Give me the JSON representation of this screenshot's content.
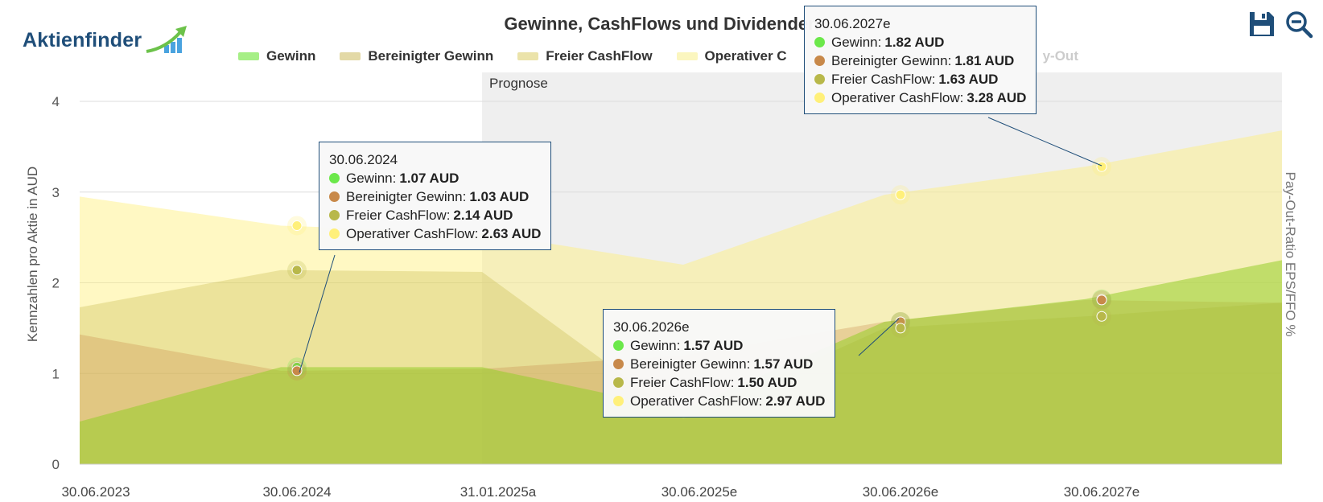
{
  "logo": {
    "text": "Aktienfinder"
  },
  "toolbar": {
    "save_icon": "save-icon",
    "zoom_icon": "zoom-out-icon"
  },
  "colors": {
    "gewinn": "#6be84a",
    "bereinigter_gewinn": "#c8894a",
    "freier_cashflow": "#b8b84a",
    "operativer_cashflow": "#fff07a",
    "axis_title": "#1f4e79"
  },
  "chart_data": {
    "type": "area",
    "title": "Gewinne, CashFlows und Dividenden",
    "ylabel": "Kennzahlen pro Aktie in AUD",
    "ylabel_right": "Pay-Out-Ratio EPS/FFO %",
    "ylim": [
      0,
      4
    ],
    "yticks": [
      "0",
      "1",
      "2",
      "3",
      "4"
    ],
    "categories": [
      "30.06.2023",
      "30.06.2024",
      "31.01.2025a",
      "30.06.2025e",
      "30.06.2026e",
      "30.06.2027e"
    ],
    "forecast_band": {
      "label": "Prognose",
      "from": "31.01.2025a"
    },
    "grid": true,
    "legend": {
      "position": "top",
      "items": [
        "Gewinn",
        "Bereinigter Gewinn",
        "Freier CashFlow",
        "Operativer C",
        "y-Out"
      ]
    },
    "series": [
      {
        "name": "Gewinn",
        "key": "gewinn",
        "values": [
          0.47,
          1.07,
          1.07,
          0.6,
          1.57,
          1.82
        ],
        "end": 2.25
      },
      {
        "name": "Bereinigter Gewinn",
        "key": "bereinigter_gewinn",
        "values": [
          1.43,
          1.03,
          1.05,
          1.2,
          1.57,
          1.81
        ],
        "end": 1.78
      },
      {
        "name": "Freier CashFlow",
        "key": "freier_cashflow",
        "values": [
          1.73,
          2.14,
          2.12,
          0.5,
          1.5,
          1.63
        ],
        "end": 1.78
      },
      {
        "name": "Operativer CashFlow",
        "key": "operativer_cashflow",
        "values": [
          2.95,
          2.63,
          2.55,
          2.2,
          2.97,
          3.28
        ],
        "end": 3.68
      }
    ],
    "tooltips": [
      {
        "date": "30.06.2024",
        "rows": [
          {
            "label": "Gewinn:",
            "value": "1.07 AUD"
          },
          {
            "label": "Bereinigter Gewinn:",
            "value": "1.03 AUD"
          },
          {
            "label": "Freier CashFlow:",
            "value": "2.14 AUD"
          },
          {
            "label": "Operativer CashFlow:",
            "value": "2.63 AUD"
          }
        ]
      },
      {
        "date": "30.06.2026e",
        "rows": [
          {
            "label": "Gewinn:",
            "value": "1.57 AUD"
          },
          {
            "label": "Bereinigter Gewinn:",
            "value": "1.57 AUD"
          },
          {
            "label": "Freier CashFlow:",
            "value": "1.50 AUD"
          },
          {
            "label": "Operativer CashFlow:",
            "value": "2.97 AUD"
          }
        ]
      },
      {
        "date": "30.06.2027e",
        "rows": [
          {
            "label": "Gewinn:",
            "value": "1.82 AUD"
          },
          {
            "label": "Bereinigter Gewinn:",
            "value": "1.81 AUD"
          },
          {
            "label": "Freier CashFlow:",
            "value": "1.63 AUD"
          },
          {
            "label": "Operativer CashFlow:",
            "value": "3.28 AUD"
          }
        ]
      }
    ]
  }
}
